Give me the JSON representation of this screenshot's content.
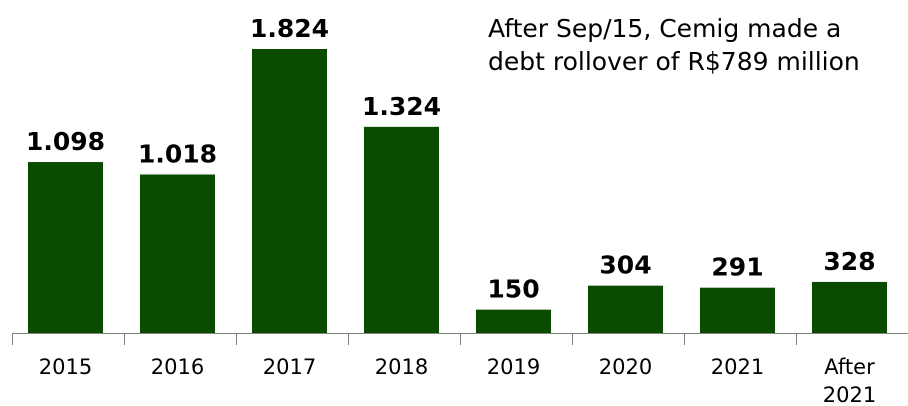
{
  "chart_data": {
    "type": "bar",
    "categories": [
      "2015",
      "2016",
      "2017",
      "2018",
      "2019",
      "2020",
      "2021",
      "After 2021"
    ],
    "category_lines": [
      [
        "2015"
      ],
      [
        "2016"
      ],
      [
        "2017"
      ],
      [
        "2018"
      ],
      [
        "2019"
      ],
      [
        "2020"
      ],
      [
        "2021"
      ],
      [
        "After",
        "2021"
      ]
    ],
    "values": [
      1098,
      1018,
      1824,
      1324,
      150,
      304,
      291,
      328
    ],
    "data_labels": [
      "1.098",
      "1.018",
      "1.824",
      "1.324",
      "150",
      "304",
      "291",
      "328"
    ],
    "title": "",
    "xlabel": "",
    "ylabel": "",
    "ylim": [
      0,
      1824
    ],
    "grid": false,
    "bar_color": "#0a4b00",
    "annotation": {
      "lines": [
        "After Sep/15, Cemig made a",
        "debt rollover of R$789 million"
      ]
    }
  }
}
